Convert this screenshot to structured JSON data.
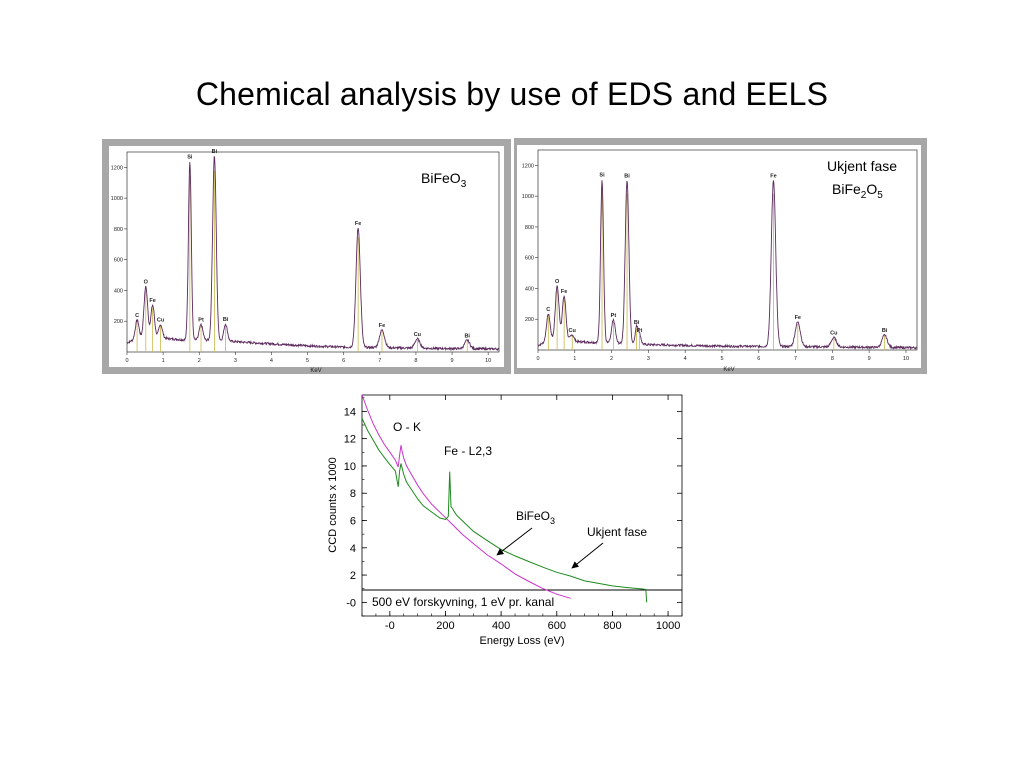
{
  "slide": {
    "title": "Chemical analysis by use of EDS and EELS"
  },
  "colors": {
    "frame_gray": "#a7a7a7",
    "eds_spectrum": "#5b2a5c",
    "eds_marker": "#c9b84a",
    "eels_bifeo3": "#cc33cc",
    "eels_unknown": "#1e8a1e"
  },
  "chart_data": [
    {
      "type": "line",
      "name": "eds_bifeo3",
      "annotation": {
        "base": "BiFeO",
        "sub": "3"
      },
      "xlabel": "KeV",
      "ylabel": "",
      "xlim": [
        0,
        10.3
      ],
      "ylim": [
        0,
        1300
      ],
      "xticks": [
        0,
        1,
        2,
        3,
        4,
        5,
        6,
        7,
        8,
        9,
        10
      ],
      "yticks": [
        200,
        400,
        600,
        800,
        1000,
        1200
      ],
      "grid": false,
      "baseline": [
        [
          0,
          60
        ],
        [
          0.3,
          90
        ],
        [
          0.7,
          100
        ],
        [
          1.0,
          90
        ],
        [
          1.5,
          80
        ],
        [
          2.5,
          75
        ],
        [
          3.5,
          60
        ],
        [
          5,
          40
        ],
        [
          6,
          32
        ],
        [
          7,
          28
        ],
        [
          8,
          25
        ],
        [
          9,
          22
        ],
        [
          10.3,
          20
        ]
      ],
      "peaks": [
        {
          "label": "C",
          "keV": 0.28,
          "height": 120,
          "width": 0.05
        },
        {
          "label": "O",
          "keV": 0.52,
          "height": 330,
          "width": 0.05
        },
        {
          "label": "Fe",
          "keV": 0.71,
          "height": 205,
          "width": 0.05
        },
        {
          "label": "Cu",
          "keV": 0.93,
          "height": 85,
          "width": 0.05
        },
        {
          "label": "Si",
          "keV": 1.74,
          "height": 1160,
          "width": 0.04
        },
        {
          "label": "Pt",
          "keV": 2.05,
          "height": 100,
          "width": 0.05
        },
        {
          "label": "Bi",
          "keV": 2.42,
          "height": 1200,
          "width": 0.05
        },
        {
          "label": "Bi",
          "keV": 2.73,
          "height": 110,
          "width": 0.05
        },
        {
          "label": "Fe",
          "keV": 6.4,
          "height": 775,
          "width": 0.06
        },
        {
          "label": "Fe",
          "keV": 7.06,
          "height": 115,
          "width": 0.07
        },
        {
          "label": "Cu",
          "keV": 8.04,
          "height": 60,
          "width": 0.07
        },
        {
          "label": "Bi",
          "keV": 9.42,
          "height": 55,
          "width": 0.07
        }
      ]
    },
    {
      "type": "line",
      "name": "eds_unknown",
      "annotation": {
        "line1": "Ukjent fase",
        "base": "BiFe",
        "sub1": "2",
        "mid": "O",
        "sub2": "5"
      },
      "xlabel": "KeV",
      "ylabel": "",
      "xlim": [
        0,
        10.3
      ],
      "ylim": [
        0,
        1300
      ],
      "xticks": [
        0,
        1,
        2,
        3,
        4,
        5,
        6,
        7,
        8,
        9,
        10
      ],
      "yticks": [
        200,
        400,
        600,
        800,
        1000,
        1200
      ],
      "grid": false,
      "baseline": [
        [
          0,
          30
        ],
        [
          0.3,
          60
        ],
        [
          0.7,
          70
        ],
        [
          1.0,
          55
        ],
        [
          2.0,
          45
        ],
        [
          3.0,
          35
        ],
        [
          5,
          25
        ],
        [
          7,
          22
        ],
        [
          10.3,
          15
        ]
      ],
      "peaks": [
        {
          "label": "C",
          "keV": 0.28,
          "height": 175,
          "width": 0.05
        },
        {
          "label": "O",
          "keV": 0.52,
          "height": 350,
          "width": 0.05
        },
        {
          "label": "Fe",
          "keV": 0.71,
          "height": 280,
          "width": 0.05
        },
        {
          "label": "Cu",
          "keV": 0.93,
          "height": 40,
          "width": 0.05
        },
        {
          "label": "Si",
          "keV": 1.74,
          "height": 1060,
          "width": 0.04
        },
        {
          "label": "Pt",
          "keV": 2.05,
          "height": 150,
          "width": 0.05
        },
        {
          "label": "Bi",
          "keV": 2.42,
          "height": 1060,
          "width": 0.05
        },
        {
          "label": "Bi",
          "keV": 2.68,
          "height": 110,
          "width": 0.04
        },
        {
          "label": "Pt",
          "keV": 2.76,
          "height": 60,
          "width": 0.04
        },
        {
          "label": "Fe",
          "keV": 6.4,
          "height": 1080,
          "width": 0.06
        },
        {
          "label": "Fe",
          "keV": 7.06,
          "height": 160,
          "width": 0.07
        },
        {
          "label": "Cu",
          "keV": 8.04,
          "height": 60,
          "width": 0.07
        },
        {
          "label": "Bi",
          "keV": 9.42,
          "height": 80,
          "width": 0.07
        }
      ]
    },
    {
      "type": "line",
      "name": "eels",
      "xlabel": "Energy Loss (eV)",
      "ylabel": "CCD counts  x 1000",
      "xlim": [
        -100,
        1050
      ],
      "ylim": [
        -1,
        15.2
      ],
      "xticks": [
        0,
        200,
        400,
        600,
        800,
        1000
      ],
      "xtick_labels": [
        "-0",
        "200",
        "400",
        "600",
        "800",
        "1000"
      ],
      "yticks": [
        0,
        2,
        4,
        6,
        8,
        10,
        12,
        14
      ],
      "ytick_labels": [
        "-0",
        "2",
        "4",
        "6",
        "8",
        "10",
        "12",
        "14"
      ],
      "grid": false,
      "inner_note": "500 eV forskyvning, 1 eV pr. kanal",
      "edge_labels": [
        "O - K",
        "Fe - L2,3"
      ],
      "series_labels": {
        "bifeo3": {
          "base": "BiFeO",
          "sub": "3"
        },
        "unknown": "Ukjent fase"
      },
      "series": [
        {
          "id": "bifeo3",
          "x": [
            -100,
            -80,
            -60,
            -40,
            -20,
            0,
            20,
            30,
            35,
            40,
            45,
            50,
            60,
            80,
            100,
            120,
            150,
            180,
            200,
            230,
            260,
            300,
            350,
            400,
            450,
            500,
            550,
            600,
            650
          ],
          "y": [
            15.2,
            14.1,
            13.1,
            12.3,
            11.6,
            11.0,
            10.4,
            9.9,
            10.8,
            11.5,
            11.0,
            10.6,
            10.0,
            9.3,
            8.6,
            8.0,
            7.2,
            6.6,
            6.2,
            5.6,
            5.0,
            4.3,
            3.5,
            2.8,
            2.1,
            1.5,
            1.0,
            0.6,
            0.3
          ]
        },
        {
          "id": "unknown",
          "x": [
            -100,
            -80,
            -60,
            -40,
            -20,
            0,
            20,
            30,
            35,
            40,
            45,
            50,
            60,
            80,
            100,
            120,
            150,
            180,
            200,
            210,
            215,
            220,
            225,
            230,
            240,
            260,
            300,
            350,
            400,
            450,
            500,
            550,
            600,
            650,
            700,
            750,
            800,
            850,
            900,
            920,
            923
          ],
          "y": [
            13.5,
            12.6,
            11.9,
            11.2,
            10.6,
            10.1,
            9.6,
            8.5,
            9.6,
            10.2,
            9.8,
            9.4,
            8.8,
            8.2,
            7.6,
            7.1,
            6.6,
            6.2,
            6.1,
            6.3,
            9.6,
            7.0,
            6.9,
            6.7,
            6.4,
            6.0,
            5.2,
            4.5,
            3.9,
            3.4,
            3.0,
            2.6,
            2.2,
            1.9,
            1.6,
            1.4,
            1.2,
            1.1,
            1.0,
            0.95,
            0.0
          ]
        }
      ]
    }
  ]
}
